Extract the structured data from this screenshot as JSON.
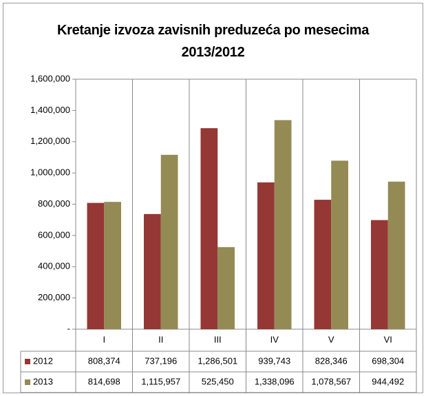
{
  "chart_data": {
    "type": "bar",
    "title": "Kretanje izvoza zavisnih preduzeća po mesecima 2013/2012",
    "categories": [
      "I",
      "II",
      "III",
      "IV",
      "V",
      "VI"
    ],
    "series": [
      {
        "name": "2012",
        "color": "#953735",
        "values": [
          808374,
          737196,
          1286501,
          939743,
          828346,
          698304
        ],
        "value_labels": [
          "808,374",
          "737,196",
          "1,286,501",
          "939,743",
          "828,346",
          "698,304"
        ]
      },
      {
        "name": "2013",
        "color": "#948a54",
        "values": [
          814698,
          1115957,
          525450,
          1338096,
          1078567,
          944492
        ],
        "value_labels": [
          "814,698",
          "1,115,957",
          "525,450",
          "1,338,096",
          "1,078,567",
          "944,492"
        ]
      }
    ],
    "ylim": [
      0,
      1600000
    ],
    "yticks": [
      {
        "value": 0,
        "label": "-"
      },
      {
        "value": 200000,
        "label": "200,000"
      },
      {
        "value": 400000,
        "label": "400,000"
      },
      {
        "value": 600000,
        "label": "600,000"
      },
      {
        "value": 800000,
        "label": "800,000"
      },
      {
        "value": 1000000,
        "label": "1,000,000"
      },
      {
        "value": 1200000,
        "label": "1,200,000"
      },
      {
        "value": 1400000,
        "label": "1,400,000"
      },
      {
        "value": 1600000,
        "label": "1,600,000"
      }
    ],
    "grid": false
  }
}
